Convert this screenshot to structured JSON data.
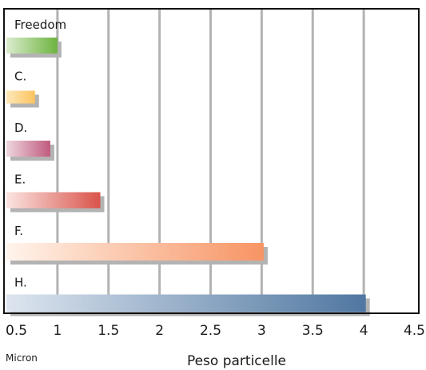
{
  "chart_data": {
    "type": "bar",
    "orientation": "horizontal",
    "categories": [
      "Freedom",
      "C.",
      "D.",
      "E.",
      "F.",
      "H."
    ],
    "values": [
      1.0,
      0.78,
      0.93,
      1.42,
      3.02,
      4.02
    ],
    "xlim": [
      0.5,
      4.5
    ],
    "ticks": [
      "0.5",
      "1",
      "1.5",
      "2",
      "2.5",
      "3",
      "3.5",
      "4",
      "4.5"
    ],
    "tick_values": [
      0.5,
      1,
      1.5,
      2,
      2.5,
      3,
      3.5,
      4,
      4.5
    ],
    "xlabel": "Peso particelle",
    "unit_label": "Micron",
    "grid": "vertical",
    "bar_colors": [
      {
        "start": "#dbeccd",
        "end": "#6db33f"
      },
      {
        "start": "#fde8b8",
        "end": "#fbc35f"
      },
      {
        "start": "#eed6df",
        "end": "#c05a7e"
      },
      {
        "start": "#fbe4e1",
        "end": "#d9534a"
      },
      {
        "start": "#fff4ec",
        "end": "#f79463"
      },
      {
        "start": "#dde5ef",
        "end": "#4f77a1"
      }
    ],
    "shadow_color": "#b3b3b3",
    "grid_color": "#b3b3b3"
  }
}
